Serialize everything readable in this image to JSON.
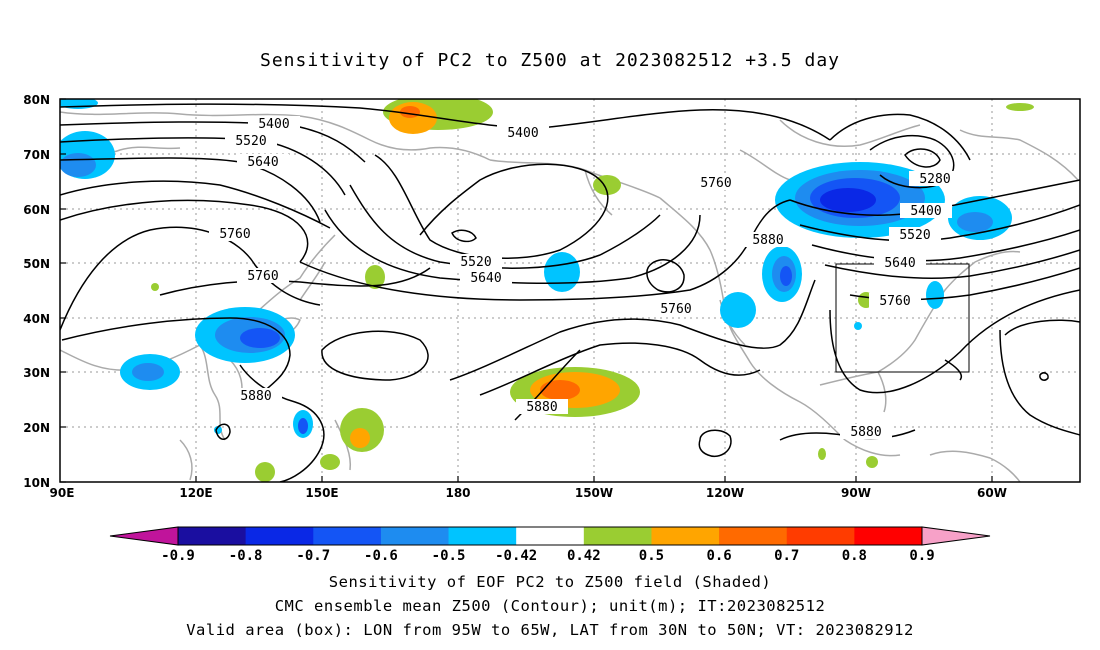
{
  "title": "Sensitivity of PC2 to Z500 at 2023082512 +3.5 day",
  "map": {
    "lat_ticks": [
      "80N",
      "70N",
      "60N",
      "50N",
      "40N",
      "30N",
      "20N",
      "10N"
    ],
    "lon_ticks": [
      "90E",
      "120E",
      "150E",
      "180",
      "150W",
      "120W",
      "90W",
      "60W"
    ],
    "contour_labels": [
      "5400",
      "5400",
      "5520",
      "5640",
      "5760",
      "5760",
      "5880",
      "5520",
      "5640",
      "5760",
      "5760",
      "5880",
      "5280",
      "5400",
      "5520",
      "5640",
      "5760",
      "5880",
      "5880"
    ],
    "valid_box": {
      "lon": "95W to 65W",
      "lat": "30N to 50N"
    }
  },
  "colorbar": {
    "labels": [
      "-0.9",
      "-0.8",
      "-0.7",
      "-0.6",
      "-0.5",
      "-0.42",
      "0.42",
      "0.5",
      "0.6",
      "0.7",
      "0.8",
      "0.9"
    ],
    "colors": [
      "#1a0ea0",
      "#0a28e6",
      "#1455f5",
      "#1e8cf0",
      "#00c4ff",
      "#ffffff",
      "#9acd32",
      "#ffa500",
      "#ff6a00",
      "#ff3c00",
      "#ff0000"
    ],
    "low_extend": "#c0149b",
    "high_extend": "#f7a1c8"
  },
  "captions": {
    "line1": "Sensitivity of EOF PC2 to Z500 field (Shaded)",
    "line2": "CMC ensemble mean Z500 (Contour); unit(m); IT:2023082512",
    "line3": "Valid area (box): LON from 95W to 65W, LAT from 30N to 50N; VT: 2023082912"
  }
}
